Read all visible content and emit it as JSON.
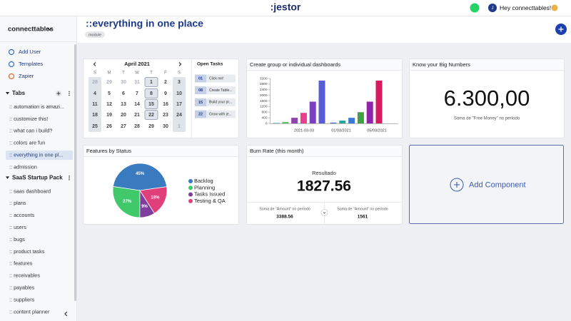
{
  "header": {
    "logo": ":jestor",
    "avatar": "J",
    "greeting": "Hey connecttables!"
  },
  "sidebar": {
    "workspace": "connecttables",
    "actions": [
      "Add User",
      "Templates",
      "Zapier"
    ],
    "sections": [
      {
        "title": "Tabs",
        "items": [
          ":: automation is amazi...",
          ":: customize this!",
          ":: what can i build?",
          ":: colors are fun",
          ":: everything in one pl...",
          ":: admission"
        ]
      },
      {
        "title": "SaaS Startup Pack",
        "items": [
          ":: saas dashboard",
          ":: plans",
          ":: accounts",
          ":: users",
          ":: bugs",
          ":: product tasks",
          ":: features",
          ":: receivables",
          ":: payables",
          ":: suppliers",
          ":: content planner"
        ]
      }
    ]
  },
  "page": {
    "title": "::everything in one place",
    "badge": "module"
  },
  "calendar": {
    "month": "April 2021",
    "weekdays": [
      "S",
      "M",
      "T",
      "W",
      "T",
      "F",
      "S"
    ],
    "weeks": [
      [
        28,
        29,
        30,
        31,
        1,
        2,
        3
      ],
      [
        4,
        5,
        6,
        7,
        8,
        9,
        10
      ],
      [
        11,
        12,
        13,
        14,
        15,
        16,
        17
      ],
      [
        18,
        19,
        20,
        21,
        22,
        23,
        24
      ],
      [
        25,
        26,
        27,
        28,
        29,
        30,
        1
      ]
    ]
  },
  "open_tasks": {
    "title": "Open Tasks",
    "items": [
      {
        "day": "01",
        "label": "Click me!"
      },
      {
        "day": "08",
        "label": "Create Table..."
      },
      {
        "day": "15",
        "label": "Build your pr..."
      },
      {
        "day": "22",
        "label": "Grow with je..."
      }
    ]
  },
  "bar_chart": {
    "type": "bar",
    "title": "Create group or individual dashboards",
    "ylim": [
      0,
      3200
    ],
    "yticks": [
      0,
      400,
      800,
      1200,
      1600,
      2000,
      2400,
      2800,
      3200
    ],
    "x_labels": [
      "2021-03-03",
      "01/03/2021",
      "05/03/2021"
    ],
    "bars": [
      {
        "value": 30,
        "color": "#2ab0a0"
      },
      {
        "value": 100,
        "color": "#5cc45c"
      },
      {
        "value": 400,
        "color": "#8e44ad"
      },
      {
        "value": 750,
        "color": "#e83e8c"
      },
      {
        "value": 1550,
        "color": "#7b3fc4"
      },
      {
        "value": 3050,
        "color": "#5b5bd6"
      },
      {
        "value": 60,
        "color": "#4a6fd6"
      },
      {
        "value": 200,
        "color": "#26a69a"
      },
      {
        "value": 400,
        "color": "#3b7bd6"
      },
      {
        "value": 800,
        "color": "#43a047"
      },
      {
        "value": 1550,
        "color": "#8e24aa"
      },
      {
        "value": 3050,
        "color": "#d81b60"
      }
    ]
  },
  "big_number": {
    "title": "Know your Big Numbers",
    "value": "6.300,00",
    "caption": "Soma de \"Free Money\" no período"
  },
  "pie_chart": {
    "type": "pie",
    "title": "Features by Status",
    "labels": [
      "Backlog",
      "Planning",
      "Tasks Issued",
      "Testing & QA"
    ],
    "values": [
      45,
      27,
      9,
      18
    ],
    "value_labels": [
      "45%",
      "27%",
      "9%",
      "18%"
    ],
    "colors": [
      "#3a7bbf",
      "#3fc96b",
      "#7e3e9e",
      "#e0407a"
    ]
  },
  "burn_rate": {
    "title": "Burn Rate (this month)",
    "label": "Resultado",
    "value": 1827.56,
    "details": [
      {
        "label": "Soma de \"Amount\" no período",
        "value": 3388.56
      },
      {
        "label": "Soma de \"Amount\" no período",
        "value": 1561
      }
    ]
  },
  "add_component": {
    "label": "Add Component"
  }
}
